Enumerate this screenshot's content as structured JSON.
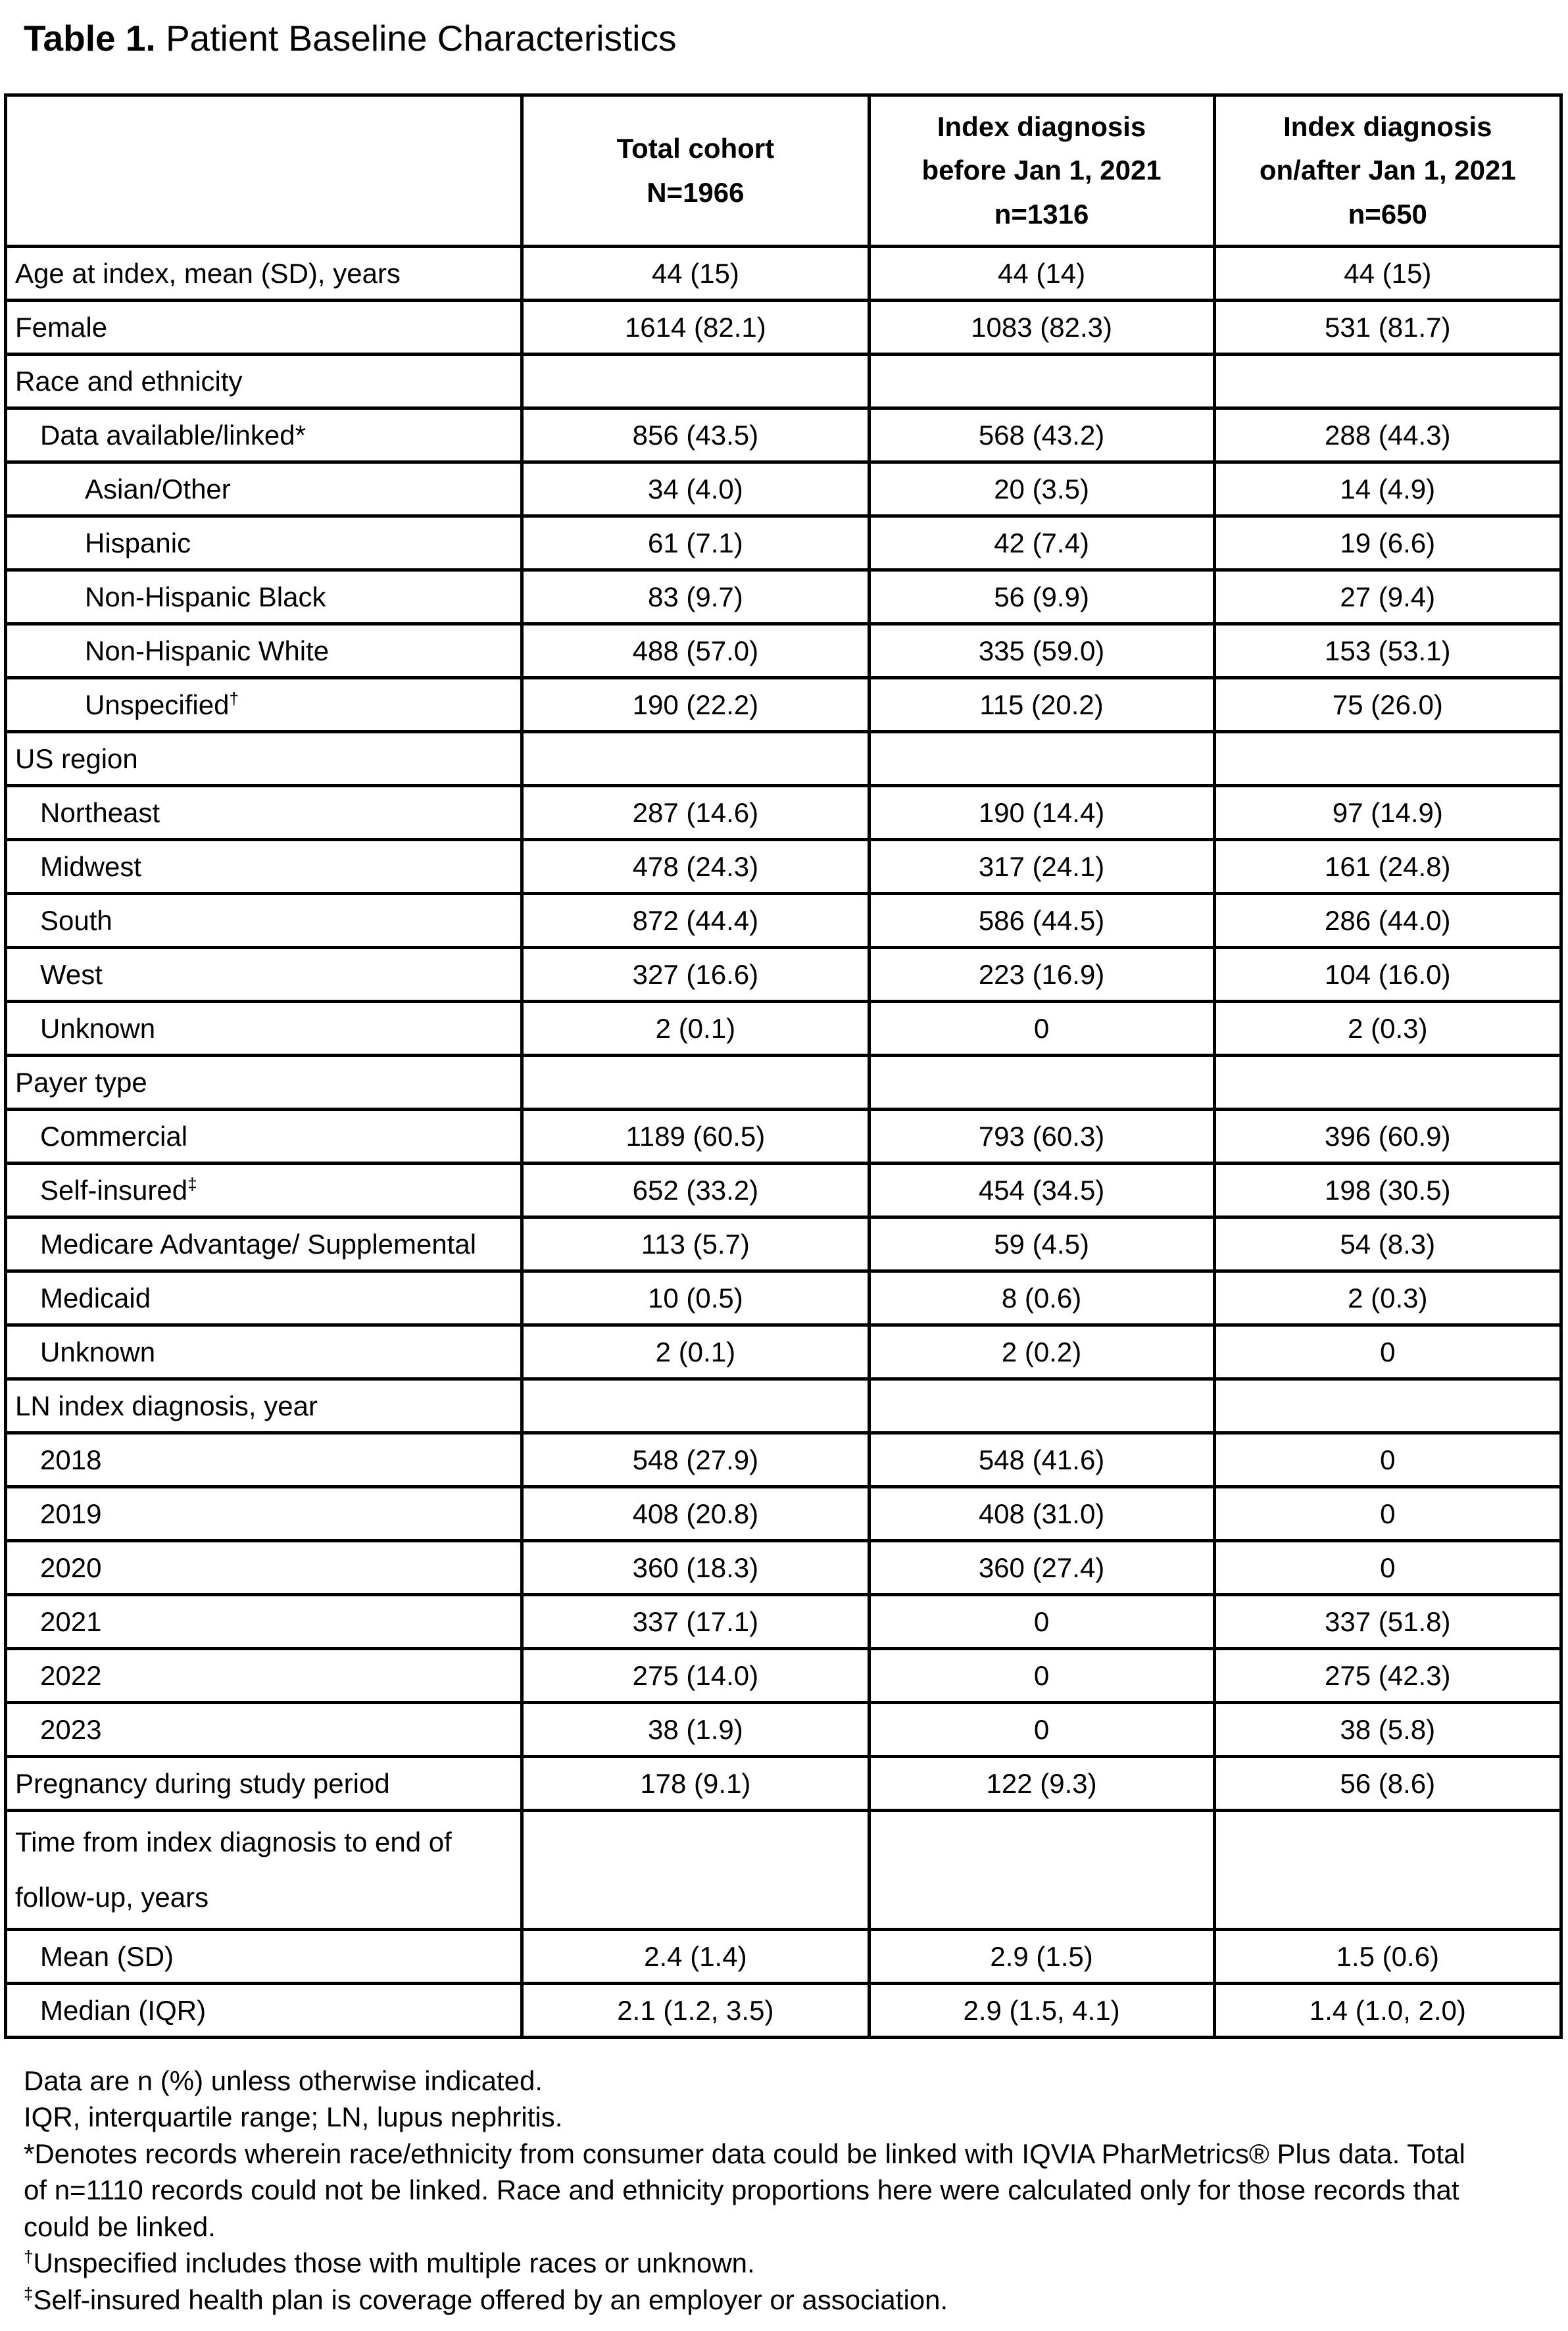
{
  "title": {
    "prefix": "Table 1.",
    "rest": " Patient Baseline Characteristics"
  },
  "table": {
    "headers": [
      {
        "text": ""
      },
      {
        "text": "Total cohort\nN=1966"
      },
      {
        "text": "Index diagnosis\nbefore Jan 1, 2021\nn=1316"
      },
      {
        "text": "Index diagnosis\non/after Jan 1, 2021\nn=650"
      }
    ],
    "rows": [
      {
        "label": "Age at index, mean (SD), years",
        "indent": 0,
        "values": [
          "44 (15)",
          "44 (14)",
          "44 (15)"
        ]
      },
      {
        "label": "Female",
        "indent": 0,
        "values": [
          "1614 (82.1)",
          "1083 (82.3)",
          "531 (81.7)"
        ]
      },
      {
        "label": "Race and ethnicity",
        "indent": 0,
        "values": [
          "",
          "",
          ""
        ]
      },
      {
        "label": "Data available/linked*",
        "indent": 1,
        "values": [
          "856 (43.5)",
          "568 (43.2)",
          "288 (44.3)"
        ]
      },
      {
        "label": "Asian/Other",
        "indent": 2,
        "values": [
          "34 (4.0)",
          "20 (3.5)",
          "14 (4.9)"
        ]
      },
      {
        "label": "Hispanic",
        "indent": 2,
        "values": [
          "61 (7.1)",
          "42 (7.4)",
          "19 (6.6)"
        ]
      },
      {
        "label": "Non-Hispanic Black",
        "indent": 2,
        "values": [
          "83 (9.7)",
          "56 (9.9)",
          "27 (9.4)"
        ]
      },
      {
        "label": "Non-Hispanic White",
        "indent": 2,
        "values": [
          "488 (57.0)",
          "335 (59.0)",
          "153 (53.1)"
        ]
      },
      {
        "label": "Unspecified",
        "sup": "†",
        "indent": 2,
        "values": [
          "190 (22.2)",
          "115 (20.2)",
          "75 (26.0)"
        ]
      },
      {
        "label": "US region",
        "indent": 0,
        "values": [
          "",
          "",
          ""
        ]
      },
      {
        "label": "Northeast",
        "indent": 1,
        "values": [
          "287 (14.6)",
          "190 (14.4)",
          "97 (14.9)"
        ]
      },
      {
        "label": "Midwest",
        "indent": 1,
        "values": [
          "478 (24.3)",
          "317 (24.1)",
          "161 (24.8)"
        ]
      },
      {
        "label": "South",
        "indent": 1,
        "values": [
          "872 (44.4)",
          "586 (44.5)",
          "286 (44.0)"
        ]
      },
      {
        "label": "West",
        "indent": 1,
        "values": [
          "327 (16.6)",
          "223 (16.9)",
          "104 (16.0)"
        ]
      },
      {
        "label": "Unknown",
        "indent": 1,
        "values": [
          "2 (0.1)",
          "0",
          "2 (0.3)"
        ]
      },
      {
        "label": "Payer type",
        "indent": 0,
        "values": [
          "",
          "",
          ""
        ]
      },
      {
        "label": "Commercial",
        "indent": 1,
        "values": [
          "1189 (60.5)",
          "793 (60.3)",
          "396 (60.9)"
        ]
      },
      {
        "label": "Self-insured",
        "sup": "‡",
        "indent": 1,
        "values": [
          "652 (33.2)",
          "454 (34.5)",
          "198 (30.5)"
        ]
      },
      {
        "label": "Medicare Advantage/ Supplemental",
        "indent": 1,
        "values": [
          "113 (5.7)",
          "59 (4.5)",
          "54 (8.3)"
        ]
      },
      {
        "label": "Medicaid",
        "indent": 1,
        "values": [
          "10 (0.5)",
          "8 (0.6)",
          "2 (0.3)"
        ]
      },
      {
        "label": "Unknown",
        "indent": 1,
        "values": [
          "2 (0.1)",
          "2 (0.2)",
          "0"
        ]
      },
      {
        "label": "LN index diagnosis, year",
        "indent": 0,
        "values": [
          "",
          "",
          ""
        ]
      },
      {
        "label": "2018",
        "indent": 1,
        "values": [
          "548 (27.9)",
          "548 (41.6)",
          "0"
        ]
      },
      {
        "label": "2019",
        "indent": 1,
        "values": [
          "408 (20.8)",
          "408 (31.0)",
          "0"
        ]
      },
      {
        "label": "2020",
        "indent": 1,
        "values": [
          "360 (18.3)",
          "360 (27.4)",
          "0"
        ]
      },
      {
        "label": "2021",
        "indent": 1,
        "values": [
          "337 (17.1)",
          "0",
          "337 (51.8)"
        ]
      },
      {
        "label": "2022",
        "indent": 1,
        "values": [
          "275 (14.0)",
          "0",
          "275 (42.3)"
        ]
      },
      {
        "label": "2023",
        "indent": 1,
        "values": [
          "38 (1.9)",
          "0",
          "38 (5.8)"
        ]
      },
      {
        "label": "Pregnancy during study period",
        "indent": 0,
        "values": [
          "178 (9.1)",
          "122 (9.3)",
          "56 (8.6)"
        ]
      },
      {
        "label": "Time from index diagnosis to end of follow-up, years",
        "indent": 0,
        "tall": true,
        "values": [
          "",
          "",
          ""
        ]
      },
      {
        "label": "Mean (SD)",
        "indent": 1,
        "values": [
          "2.4 (1.4)",
          "2.9 (1.5)",
          "1.5 (0.6)"
        ]
      },
      {
        "label": "Median (IQR)",
        "indent": 1,
        "values": [
          "2.1 (1.2, 3.5)",
          "2.9 (1.5, 4.1)",
          "1.4 (1.0, 2.0)"
        ]
      }
    ]
  },
  "footnotes": [
    {
      "sup": "",
      "text": "Data are n (%) unless otherwise indicated."
    },
    {
      "sup": "",
      "text": "IQR, interquartile range; LN, lupus nephritis."
    },
    {
      "sup": "",
      "text": "*Denotes records wherein race/ethnicity from consumer data could be linked with IQVIA PharMetrics® Plus data. Total of n=1110 records could not be linked. Race and ethnicity proportions here were calculated only for those records that could be linked."
    },
    {
      "sup": "†",
      "text": "Unspecified includes those with multiple races or unknown."
    },
    {
      "sup": "‡",
      "text": "Self-insured health plan is coverage offered by an employer or association."
    }
  ]
}
